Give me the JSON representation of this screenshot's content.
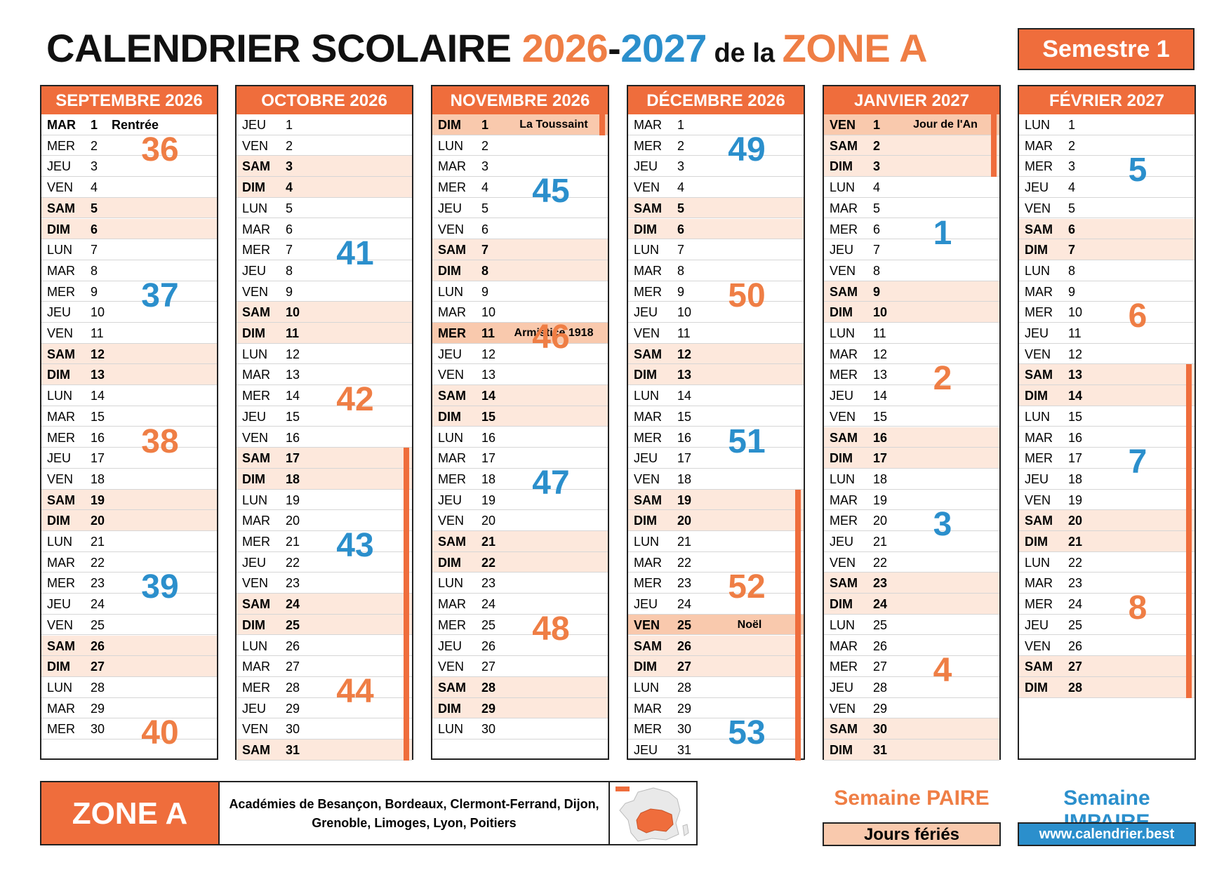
{
  "header": {
    "title_part1": "CALENDRIER SCOLAIRE ",
    "year1": "2026",
    "dash": "-",
    "year2": "2027",
    "de_la": " de la ",
    "zone": "ZONE A",
    "semestre": "Semestre 1"
  },
  "colors": {
    "orange": "#ef6d3c",
    "orange_text": "#ef7e45",
    "blue": "#2b8fcc",
    "weekend_bg": "#fde8dc",
    "holiday_bg": "#f9c9ad"
  },
  "months": [
    {
      "name": "SEPTEMBRE 2026",
      "first_dow": 2,
      "days": 30,
      "events": {
        "1": "Rentrée"
      },
      "holidays": [],
      "bold_days": [
        1
      ],
      "event_align_left": true,
      "weeks": [
        {
          "num": "36",
          "color": "orange",
          "row": 1
        },
        {
          "num": "37",
          "color": "blue",
          "row": 8
        },
        {
          "num": "38",
          "color": "orange",
          "row": 15
        },
        {
          "num": "39",
          "color": "blue",
          "row": 22
        },
        {
          "num": "40",
          "color": "orange",
          "row": 29
        }
      ],
      "bars": []
    },
    {
      "name": "OCTOBRE 2026",
      "first_dow": 4,
      "days": 31,
      "events": {},
      "holidays": [],
      "bold_days": [],
      "weeks": [
        {
          "num": "41",
          "color": "blue",
          "row": 6
        },
        {
          "num": "42",
          "color": "orange",
          "row": 13
        },
        {
          "num": "43",
          "color": "blue",
          "row": 20
        },
        {
          "num": "44",
          "color": "orange",
          "row": 27
        }
      ],
      "bars": [
        [
          17,
          31
        ]
      ]
    },
    {
      "name": "NOVEMBRE 2026",
      "first_dow": 7,
      "days": 30,
      "events": {
        "1": "La Toussaint",
        "11": "Armistice 1918"
      },
      "holidays": [
        1,
        11
      ],
      "bold_days": [],
      "weeks": [
        {
          "num": "45",
          "color": "blue",
          "row": 3
        },
        {
          "num": "46",
          "color": "orange",
          "row": 10
        },
        {
          "num": "47",
          "color": "blue",
          "row": 17
        },
        {
          "num": "48",
          "color": "orange",
          "row": 24
        }
      ],
      "bars": [
        [
          1,
          1
        ]
      ]
    },
    {
      "name": "DÉCEMBRE 2026",
      "first_dow": 2,
      "days": 31,
      "events": {
        "25": "Noël"
      },
      "holidays": [
        25
      ],
      "bold_days": [],
      "weeks": [
        {
          "num": "49",
          "color": "blue",
          "row": 1
        },
        {
          "num": "50",
          "color": "orange",
          "row": 8
        },
        {
          "num": "51",
          "color": "blue",
          "row": 15
        },
        {
          "num": "52",
          "color": "orange",
          "row": 22
        },
        {
          "num": "53",
          "color": "blue",
          "row": 29
        }
      ],
      "bars": [
        [
          19,
          31
        ]
      ]
    },
    {
      "name": "JANVIER 2027",
      "first_dow": 5,
      "days": 31,
      "events": {
        "1": "Jour de l'An"
      },
      "holidays": [
        1
      ],
      "bold_days": [],
      "weeks": [
        {
          "num": "1",
          "color": "blue",
          "row": 5
        },
        {
          "num": "2",
          "color": "orange",
          "row": 12
        },
        {
          "num": "3",
          "color": "blue",
          "row": 19
        },
        {
          "num": "4",
          "color": "orange",
          "row": 26
        }
      ],
      "bars": [
        [
          1,
          3
        ]
      ]
    },
    {
      "name": "FÉVRIER 2027",
      "first_dow": 1,
      "days": 28,
      "events": {},
      "holidays": [],
      "bold_days": [],
      "weeks": [
        {
          "num": "5",
          "color": "blue",
          "row": 2
        },
        {
          "num": "6",
          "color": "orange",
          "row": 9
        },
        {
          "num": "7",
          "color": "blue",
          "row": 16
        },
        {
          "num": "8",
          "color": "orange",
          "row": 23
        }
      ],
      "bars": [
        [
          13,
          28
        ]
      ]
    }
  ],
  "day_names": [
    "LUN",
    "MAR",
    "MER",
    "JEU",
    "VEN",
    "SAM",
    "DIM"
  ],
  "footer": {
    "zone_label": "ZONE A",
    "academies_line1": "Académies de Besançon, Bordeaux, Clermont-Ferrand, Dijon,",
    "academies_line2": "Grenoble, Limoges, Lyon, Poitiers",
    "map_icon": "france-map-icon"
  },
  "legend": {
    "paire": "Semaine PAIRE",
    "impaire": "Semaine IMPAIRE",
    "feries": "Jours fériés",
    "url": "www.calendrier.best"
  }
}
